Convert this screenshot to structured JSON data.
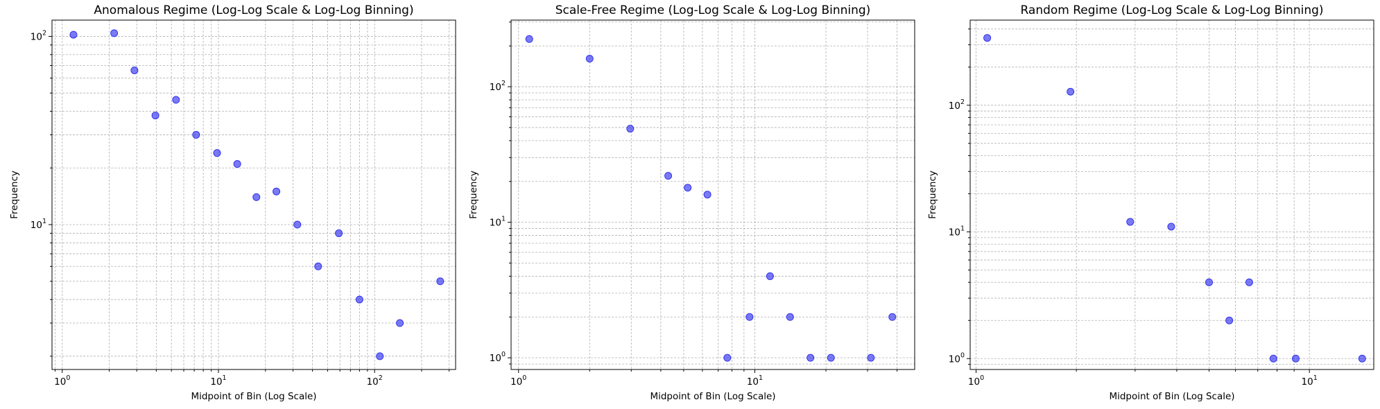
{
  "chart_data": [
    {
      "type": "scatter",
      "title": "Anomalous Regime (Log-Log Scale & Log-Log Binning)",
      "xlabel": "Midpoint of Bin (Log Scale)",
      "ylabel": "Frequency",
      "xscale": "log",
      "yscale": "log",
      "xlim": [
        0.86,
        330
      ],
      "ylim": [
        1.7,
        122
      ],
      "grid": true,
      "point_color": "#3333ee",
      "x": [
        1.18,
        2.15,
        2.9,
        3.95,
        5.35,
        7.2,
        9.8,
        13.2,
        17.5,
        23.5,
        32,
        43.5,
        59,
        80,
        108,
        145,
        263
      ],
      "y": [
        102,
        104,
        66,
        38,
        46,
        30,
        24,
        21,
        14,
        15,
        10,
        6,
        9,
        4,
        2,
        3,
        5
      ]
    },
    {
      "type": "scatter",
      "title": "Scale-Free Regime (Log-Log Scale & Log-Log Binning)",
      "xlabel": "Midpoint of Bin (Log Scale)",
      "ylabel": "Frequency",
      "xscale": "log",
      "yscale": "log",
      "xlim": [
        0.93,
        47.5
      ],
      "ylim": [
        0.82,
        310
      ],
      "grid": true,
      "point_color": "#3333ee",
      "x": [
        1.11,
        2.0,
        2.97,
        4.3,
        5.2,
        6.3,
        7.65,
        9.5,
        11.6,
        14.1,
        17.2,
        21.0,
        31.0,
        38.2
      ],
      "y": [
        225,
        161,
        49,
        22,
        18,
        16,
        1,
        2,
        4,
        2,
        1,
        1,
        1,
        2
      ]
    },
    {
      "type": "scatter",
      "title": "Random Regime (Log-Log Scale & Log-Log Binning)",
      "xlabel": "Midpoint of Bin (Log Scale)",
      "ylabel": "Frequency",
      "xscale": "log",
      "yscale": "log",
      "xlim": [
        0.96,
        15.6
      ],
      "ylim": [
        0.82,
        470
      ],
      "grid": true,
      "point_color": "#3333ee",
      "x": [
        1.08,
        1.92,
        2.9,
        3.85,
        5.0,
        5.75,
        6.6,
        7.8,
        9.1,
        14.4
      ],
      "y": [
        340,
        128,
        12,
        11,
        4,
        2,
        4,
        1,
        1,
        1
      ]
    }
  ]
}
